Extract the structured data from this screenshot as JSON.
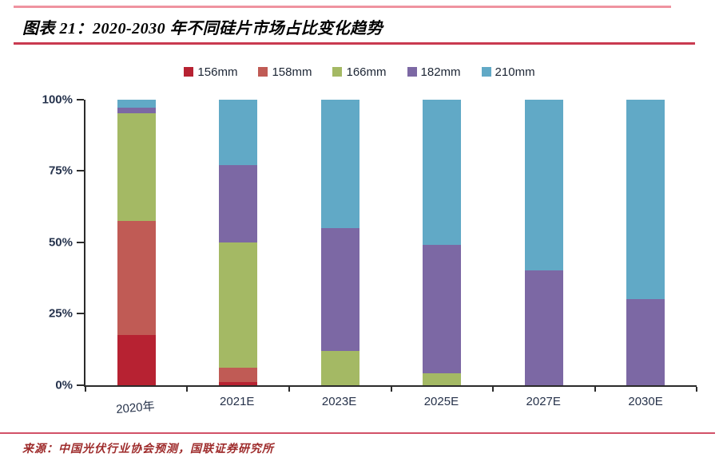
{
  "header": {
    "title": "图表 21：2020-2030 年不同硅片市场占比变化趋势"
  },
  "footer": {
    "source": "来源：中国光伏行业协会预测，国联证券研究所"
  },
  "style": {
    "top_rule_color": "#ef93a0",
    "title_rule_color": "#c93a50",
    "footer_rule_color": "#d25168",
    "axis_color": "#2b2b2b",
    "axis_label_color": "#26334d",
    "source_color": "#9e2b2b"
  },
  "chart_data": {
    "type": "bar",
    "stacked": true,
    "title": "2020-2030 年不同硅片市场占比变化趋势",
    "categories": [
      "2020年",
      "2021E",
      "2023E",
      "2025E",
      "2027E",
      "2030E"
    ],
    "series": [
      {
        "name": "156mm",
        "color": "#b72232",
        "values": [
          17.5,
          1,
          0,
          0,
          0,
          0
        ]
      },
      {
        "name": "158mm",
        "color": "#c05b55",
        "values": [
          40,
          5,
          0,
          0,
          0,
          0
        ]
      },
      {
        "name": "166mm",
        "color": "#a4b964",
        "values": [
          37.5,
          44,
          12,
          4,
          0,
          0
        ]
      },
      {
        "name": "182mm",
        "color": "#7c68a4",
        "values": [
          2,
          27,
          43,
          45,
          40,
          30
        ]
      },
      {
        "name": "210mm",
        "color": "#61a9c6",
        "values": [
          3,
          23,
          45,
          51,
          60,
          70
        ]
      }
    ],
    "ylabel": "",
    "xlabel": "",
    "ylim": [
      0,
      100
    ],
    "y_ticks": [
      {
        "label": "100%",
        "value": 100
      },
      {
        "label": "75%",
        "value": 75
      },
      {
        "label": "50%",
        "value": 50
      },
      {
        "label": "25%",
        "value": 25
      },
      {
        "label": "0%",
        "value": 0
      }
    ],
    "grid": false,
    "legend_position": "top"
  }
}
